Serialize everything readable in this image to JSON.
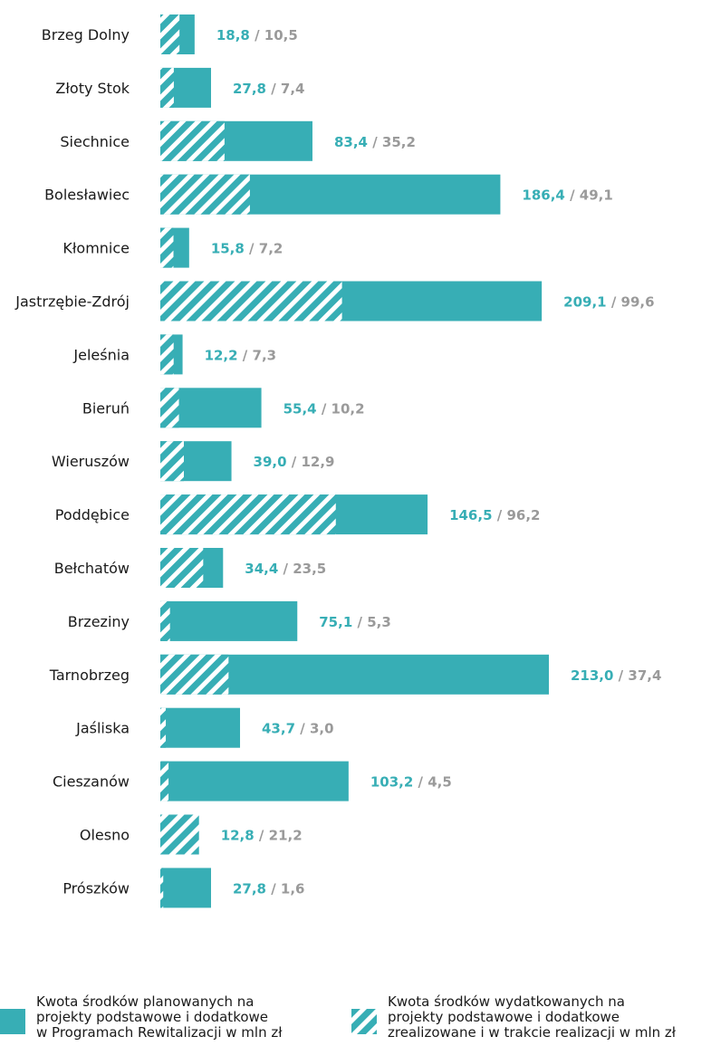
{
  "colors": {
    "bar": "#37aeb5",
    "planned_label": "#37aeb5",
    "spent_label": "#9a9a9a"
  },
  "chart_data": {
    "type": "bar",
    "orientation": "horizontal",
    "categories": [
      "Brzeg Dolny",
      "Złoty Stok",
      "Siechnice",
      "Bolesławiec",
      "Kłomnice",
      "Jastrzębie-Zdrój",
      "Jeleśnia",
      "Bieruń",
      "Wieruszów",
      "Poddębice",
      "Bełchatów",
      "Brzeziny",
      "Tarnobrzeg",
      "Jaśliska",
      "Cieszanów",
      "Olesno",
      "Prószków"
    ],
    "series": [
      {
        "name": "Kwota środków planowanych na projekty podstawowe i dodatkowe w Programach Rewitalizacji w mln zł",
        "style": "solid",
        "values": [
          18.8,
          27.8,
          83.4,
          186.4,
          15.8,
          209.1,
          12.2,
          55.4,
          39.0,
          146.5,
          34.4,
          75.1,
          213.0,
          43.7,
          103.2,
          12.8,
          27.8
        ],
        "labels": [
          "18,8",
          "27,8",
          "83,4",
          "186,4",
          "15,8",
          "209,1",
          "12,2",
          "55,4",
          "39,0",
          "146,5",
          "34,4",
          "75,1",
          "213,0",
          "43,7",
          "103,2",
          "12,8",
          "27,8"
        ]
      },
      {
        "name": "Kwota środków wydatkowanych na projekty podstawowe i dodatkowe zrealizowane i w trakcie realizacji w mln zł",
        "style": "hatched",
        "values": [
          10.5,
          7.4,
          35.2,
          49.1,
          7.2,
          99.6,
          7.3,
          10.2,
          12.9,
          96.2,
          23.5,
          5.3,
          37.4,
          3.0,
          4.5,
          21.2,
          1.6
        ],
        "labels": [
          "10,5",
          "7,4",
          "35,2",
          "49,1",
          "7,2",
          "99,6",
          "7,3",
          "10,2",
          "12,9",
          "96,2",
          "23,5",
          "5,3",
          "37,4",
          "3,0",
          "4,5",
          "21,2",
          "1,6"
        ]
      }
    ],
    "label_separator": " / ",
    "xlim": [
      0,
      213.0
    ],
    "grid": false,
    "legend_position": "bottom"
  },
  "legend": {
    "planned": "Kwota środków planowanych na\nprojekty podstawowe i dodatkowe\nw Programach Rewitalizacji w mln zł",
    "spent": "Kwota środków wydatkowanych na\nprojekty podstawowe i dodatkowe\nzrealizowane i w trakcie realizacji w mln zł"
  }
}
